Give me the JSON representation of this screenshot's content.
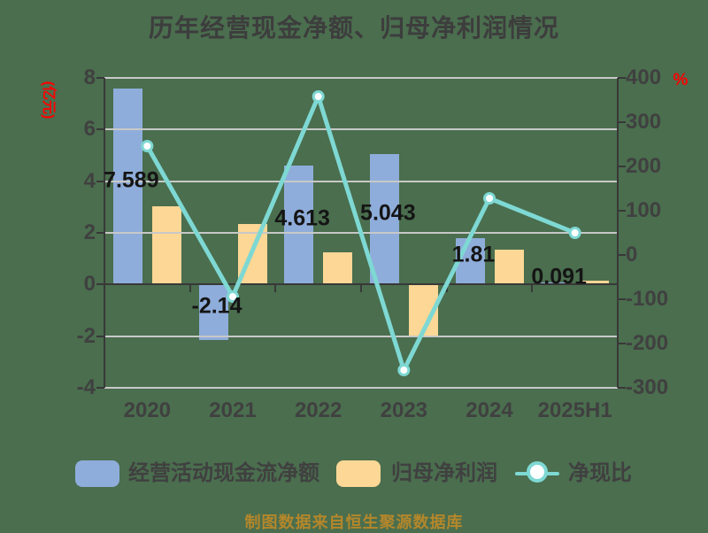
{
  "title": "历年经营现金净额、归母净利润情况",
  "footer": "制图数据来自恒生聚源数据库",
  "legend": {
    "cashflow": "经营活动现金流净额",
    "profit": "归母净利润",
    "ratio": "净现比"
  },
  "colors": {
    "background": "#4a6e4e",
    "cashflow_bar": "#8fadda",
    "profit_bar": "#fcd795",
    "ratio_line": "#7ed8d3",
    "marker_fill": "#ffffff",
    "grid": "#c8c8c8",
    "axis": "#383838",
    "tick_text": "#404040",
    "data_label_text": "#151515",
    "unit_text": "#ff0000",
    "title_text": "#3d3d3d",
    "footer_text": "#b4872b"
  },
  "chart_data": {
    "type": "combo-bar-line",
    "title": "历年经营现金净额、归母净利润情况",
    "categories": [
      "2020",
      "2021",
      "2022",
      "2023",
      "2024",
      "2025H1"
    ],
    "series": [
      {
        "name": "经营活动现金流净额",
        "type": "bar",
        "axis": "left",
        "values": [
          7.589,
          -2.14,
          4.613,
          5.043,
          1.81,
          0.091
        ],
        "data_labels": [
          "7.589",
          "-2.14",
          "4.613",
          "5.043",
          "1.81",
          "0.091"
        ]
      },
      {
        "name": "归母净利润",
        "type": "bar",
        "axis": "left",
        "values": [
          3.03,
          2.34,
          1.25,
          -2.0,
          1.35,
          0.15
        ]
      },
      {
        "name": "净现比",
        "type": "line",
        "axis": "right",
        "values": [
          246,
          -94,
          358,
          -260,
          128,
          50
        ]
      }
    ],
    "left_axis": {
      "label": "(亿元)",
      "min": -4,
      "max": 8,
      "ticks": [
        8,
        6,
        4,
        2,
        0,
        -2,
        -4
      ]
    },
    "right_axis": {
      "label": "%",
      "min": -300,
      "max": 400,
      "ticks": [
        400,
        300,
        200,
        100,
        0,
        -100,
        -200,
        -300
      ]
    },
    "grid": true,
    "legend_position": "bottom"
  }
}
